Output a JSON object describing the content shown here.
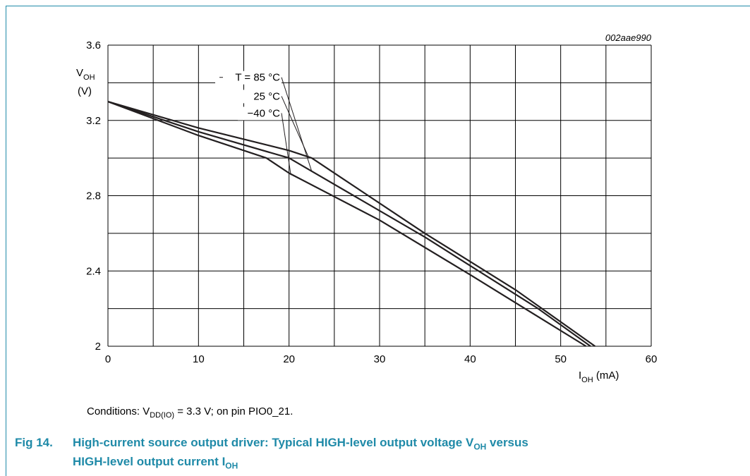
{
  "chart_data": {
    "type": "line",
    "code": "002aae990",
    "xlabel": {
      "main": "I",
      "sub": "OH",
      "unit": " (mA)"
    },
    "ylabel": {
      "main": "V",
      "sub": "OH",
      "unit": "(V)"
    },
    "xlim": [
      0,
      60
    ],
    "ylim": [
      2,
      3.6
    ],
    "xticks": [
      0,
      10,
      20,
      30,
      40,
      50,
      60
    ],
    "yticks": [
      2,
      2.4,
      2.8,
      3.2,
      3.6
    ],
    "xtick_labels": [
      "0",
      "10",
      "20",
      "30",
      "40",
      "50",
      "60"
    ],
    "ytick_labels": [
      "2",
      "2.4",
      "2.8",
      "3.2",
      "3.6"
    ],
    "grid": true,
    "series": [
      {
        "name": "T = 85 °C",
        "x": [
          0,
          10,
          20,
          22.5,
          35,
          47.5,
          53.3
        ],
        "y": [
          3.3,
          3.14,
          3.0,
          2.93,
          2.58,
          2.2,
          2.0
        ]
      },
      {
        "name": "25 °C",
        "x": [
          0,
          10,
          20,
          22.5,
          35,
          45,
          53.8
        ],
        "y": [
          3.3,
          3.16,
          3.04,
          3.0,
          2.6,
          2.3,
          2.0
        ]
      },
      {
        "name": "−40 °C",
        "x": [
          0,
          10,
          17.5,
          20,
          30,
          40,
          52.8
        ],
        "y": [
          3.3,
          3.12,
          3.0,
          2.92,
          2.67,
          2.38,
          2.0
        ]
      }
    ]
  },
  "conditions": {
    "prefix": "Conditions: V",
    "sub": "DD(IO)",
    "suffix": " = 3.3 V; on pin PIO0_21."
  },
  "caption": {
    "label": "Fig 14.",
    "line1_prefix": "High-current source output driver: Typical HIGH-level output voltage V",
    "line1_sub": "OH",
    "line1_suffix": " versus",
    "line2_prefix": "HIGH-level output current I",
    "line2_sub": "OH"
  },
  "colors": {
    "accent": "#1f8aa8",
    "line": "#231f20",
    "grid": "#000000"
  }
}
